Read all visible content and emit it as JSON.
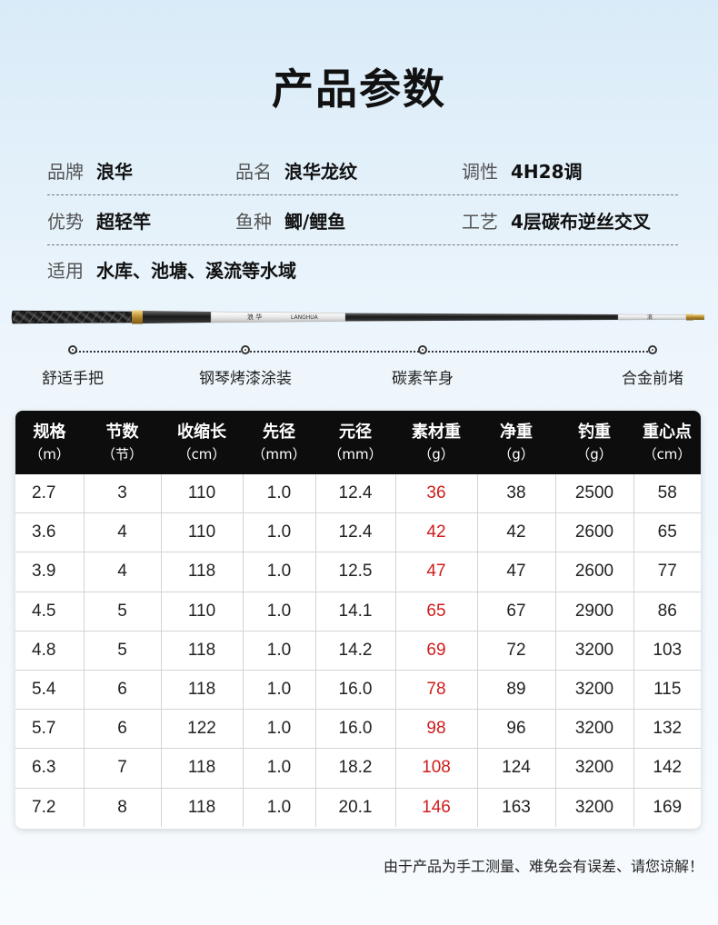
{
  "title": "产品参数",
  "specs": [
    [
      {
        "label": "品牌",
        "value": "浪华"
      },
      {
        "label": "品名",
        "value": "浪华龙纹"
      },
      {
        "label": "调性",
        "value": "4H28调"
      }
    ],
    [
      {
        "label": "优势",
        "value": "超轻竿"
      },
      {
        "label": "鱼种",
        "value": "鲫/鲤鱼"
      },
      {
        "label": "工艺",
        "value": "4层碳布逆丝交叉"
      }
    ],
    [
      {
        "label": "适用",
        "value": "水库、池塘、溪流等水域"
      }
    ]
  ],
  "rod_parts": [
    "舒适手把",
    "钢琴烤漆涂装",
    "碳素竿身",
    "合金前堵"
  ],
  "table": {
    "headers": [
      {
        "name": "规格",
        "unit": "（m）"
      },
      {
        "name": "节数",
        "unit": "（节）"
      },
      {
        "name": "收缩长",
        "unit": "（cm）"
      },
      {
        "name": "先径",
        "unit": "（mm）"
      },
      {
        "name": "元径",
        "unit": "（mm）"
      },
      {
        "name": "素材重",
        "unit": "（g）"
      },
      {
        "name": "净重",
        "unit": "（g）"
      },
      {
        "name": "钓重",
        "unit": "（g）"
      },
      {
        "name": "重心点",
        "unit": "（cm）"
      }
    ],
    "rows": [
      [
        "2.7",
        "3",
        "110",
        "1.0",
        "12.4",
        "36",
        "38",
        "2500",
        "58"
      ],
      [
        "3.6",
        "4",
        "110",
        "1.0",
        "12.4",
        "42",
        "42",
        "2600",
        "65"
      ],
      [
        "3.9",
        "4",
        "118",
        "1.0",
        "12.5",
        "47",
        "47",
        "2600",
        "77"
      ],
      [
        "4.5",
        "5",
        "110",
        "1.0",
        "14.1",
        "65",
        "67",
        "2900",
        "86"
      ],
      [
        "4.8",
        "5",
        "118",
        "1.0",
        "14.2",
        "69",
        "72",
        "3200",
        "103"
      ],
      [
        "5.4",
        "6",
        "118",
        "1.0",
        "16.0",
        "78",
        "89",
        "3200",
        "115"
      ],
      [
        "5.7",
        "6",
        "122",
        "1.0",
        "16.0",
        "98",
        "96",
        "3200",
        "132"
      ],
      [
        "6.3",
        "7",
        "118",
        "1.0",
        "18.2",
        "108",
        "124",
        "3200",
        "142"
      ],
      [
        "7.2",
        "8",
        "118",
        "1.0",
        "20.1",
        "146",
        "163",
        "3200",
        "169"
      ]
    ],
    "highlight_column": 5,
    "highlight_color": "#d01c1c"
  },
  "footnote": "由于产品为手工测量、难免会有误差、请您谅解！"
}
